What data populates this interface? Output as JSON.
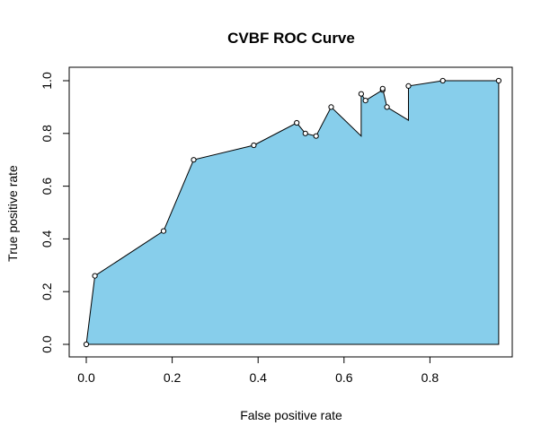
{
  "chart_data": {
    "type": "area",
    "title": "CVBF ROC Curve",
    "xlabel": "False positive rate",
    "ylabel": "True positive rate",
    "xlim": [
      0.0,
      0.96
    ],
    "ylim": [
      0.0,
      1.0
    ],
    "x_ticks": [
      "0.0",
      "0.2",
      "0.4",
      "0.6",
      "0.8"
    ],
    "y_ticks": [
      "0.0",
      "0.2",
      "0.4",
      "0.6",
      "0.8",
      "1.0"
    ],
    "grid": false,
    "legend": "none",
    "fill_color": "#87CEEB",
    "line_color": "#000000",
    "series": [
      {
        "x": [
          0.0,
          0.02,
          0.18,
          0.25,
          0.39,
          0.49,
          0.51,
          0.535,
          0.57,
          0.64,
          0.64,
          0.65,
          0.69,
          0.69,
          0.7,
          0.75,
          0.75,
          0.83,
          0.96
        ],
        "y": [
          0.0,
          0.26,
          0.43,
          0.7,
          0.755,
          0.84,
          0.8,
          0.79,
          0.9,
          0.79,
          0.95,
          0.925,
          0.965,
          0.97,
          0.9,
          0.85,
          0.98,
          1.0,
          1.0
        ],
        "markers": [
          true,
          true,
          true,
          true,
          true,
          true,
          true,
          true,
          true,
          false,
          true,
          true,
          true,
          true,
          true,
          false,
          true,
          true,
          true
        ]
      }
    ]
  }
}
